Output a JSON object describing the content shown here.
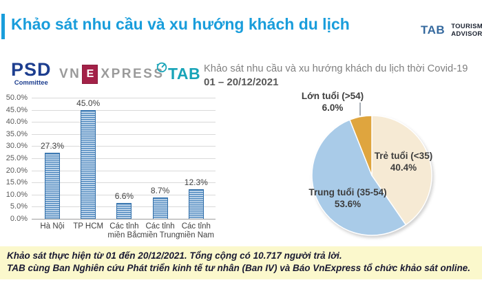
{
  "title": {
    "text": "Khảo sát nhu cầu và xu hướng khách du lịch"
  },
  "brand": {
    "tab": "TAB",
    "line1": "TOURISM",
    "line2": "ADVISORY"
  },
  "logos": {
    "psd": {
      "name": "PSD",
      "sub": "Committee"
    },
    "vnexpress": {
      "pre": "VN",
      "e": "E",
      "post": "XPRESS"
    },
    "tab": {
      "text": "TAB"
    }
  },
  "subtitle": {
    "line1": "Khảo sát nhu cầu và xu hướng khách du lịch thời Covid-19",
    "line2": "01 – 20/12/2021"
  },
  "footer": {
    "line1": "Khảo sát thực hiện từ 01 đến 20/12/2021. Tổng cộng có 10.717 người trả lời.",
    "line2": "TAB cùng Ban Nghiên cứu Phát triển kinh tế tư nhân (Ban IV) và Báo VnExpress tổ chức khảo sát online."
  },
  "colors": {
    "accent_blue": "#199ddb",
    "psd_navy": "#1d3e8f",
    "vnexpress_crimson": "#a32148",
    "tab_teal": "#18a4b8",
    "footer_yellow": "#fbf8cc",
    "bar_dark": "#4c86bd",
    "bar_light": "#d7e6f4"
  },
  "chart_data": [
    {
      "type": "bar",
      "title": "",
      "categories": [
        "Hà Nội",
        "TP HCM",
        "Các tỉnh miền Bắc",
        "Các tỉnh miền Trung",
        "Các tỉnh miền Nam"
      ],
      "values": [
        27.3,
        45.0,
        6.6,
        8.7,
        12.3
      ],
      "value_labels": [
        "27.3%",
        "45.0%",
        "6.6%",
        "8.7%",
        "12.3%"
      ],
      "xlabel": "",
      "ylabel": "",
      "ylim": [
        0,
        50
      ],
      "ytick_labels": [
        "50.0%",
        "45.0%",
        "40.0%",
        "35.0%",
        "30.0%",
        "25.0%",
        "20.0%",
        "15.0%",
        "10.0%",
        "5.0%",
        "0.0%"
      ],
      "grid": true,
      "legend": "none"
    },
    {
      "type": "pie",
      "start_angle": "12-oclock",
      "direction": "clockwise",
      "slices": [
        {
          "label": "Trẻ tuổi (<35)",
          "pct_label": "40.4%",
          "value": 40.4,
          "color": "#f6ead4"
        },
        {
          "label": "Trung tuổi (35-54)",
          "pct_label": "53.6%",
          "value": 53.6,
          "color": "#a9cbe8"
        },
        {
          "label": "Lớn tuổi (>54)",
          "pct_label": "6.0%",
          "value": 6.0,
          "color": "#dfa53e"
        }
      ]
    }
  ]
}
